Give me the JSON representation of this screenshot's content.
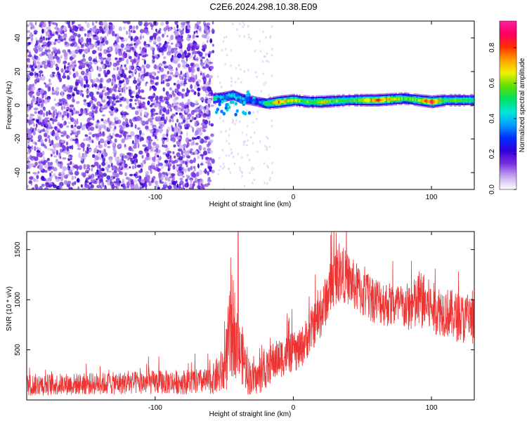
{
  "title": "C2E6.2024.298.10.38.E09",
  "chart_data": [
    {
      "type": "heatmap",
      "title": "C2E6.2024.298.10.38.E09",
      "xlabel": "Height of straight line (km)",
      "ylabel": "Frequency (Hz)",
      "xlim": [
        -193,
        131
      ],
      "ylim": [
        -50,
        50
      ],
      "x_ticks": [
        -100,
        0,
        100
      ],
      "x_tick_labels": [
        "-100",
        "0",
        "100"
      ],
      "y_ticks": [
        40,
        20,
        0,
        -20,
        -40
      ],
      "y_tick_labels": [
        "40",
        "20",
        "0",
        "-20",
        "-40"
      ],
      "colorbar": {
        "label": "Normalized spectral amplitude",
        "range": [
          0.0,
          0.95
        ],
        "ticks": [
          0.0,
          0.2,
          0.4,
          0.6,
          0.8
        ],
        "tick_labels": [
          "0.0",
          "0.2",
          "0.4",
          "0.6",
          "0.8"
        ],
        "colormap": [
          "#ffffff",
          "#c4a8ef",
          "#7a2fe0",
          "#3000d8",
          "#0030ff",
          "#00a0ff",
          "#00e8d8",
          "#00e060",
          "#60e000",
          "#f0f000",
          "#ffa000",
          "#ff3000",
          "#ff0060",
          "#ff20a0"
        ]
      },
      "noise_region_x": [
        -193,
        -58
      ],
      "signal_track": {
        "x": [
          -58,
          -50,
          -44,
          -38,
          -32,
          -26,
          -20,
          -10,
          0,
          10,
          20,
          40,
          60,
          80,
          90,
          100,
          110,
          120,
          131
        ],
        "freq": [
          4,
          5,
          6,
          4,
          3,
          2,
          1,
          2,
          3,
          2,
          2,
          3,
          3,
          4,
          3,
          2,
          3,
          3,
          3
        ],
        "amplitude": [
          0.5,
          0.35,
          0.45,
          0.4,
          0.3,
          0.3,
          0.5,
          0.75,
          0.6,
          0.55,
          0.65,
          0.5,
          0.75,
          0.55,
          0.6,
          0.85,
          0.5,
          0.55,
          0.5
        ]
      }
    },
    {
      "type": "line",
      "xlabel": "Height of straight line (km)",
      "ylabel": "SNR (10 * v/v)",
      "xlim": [
        -193,
        131
      ],
      "ylim": [
        0,
        1680
      ],
      "x_ticks": [
        -100,
        0,
        100
      ],
      "x_tick_labels": [
        "-100",
        "0",
        "100"
      ],
      "y_ticks": [
        500,
        1000,
        1500
      ],
      "y_tick_labels": [
        "500",
        "1000",
        "1500"
      ],
      "series": [
        {
          "name": "SNR",
          "color": "#ee3333",
          "envelope_x": [
            -193,
            -150,
            -100,
            -60,
            -50,
            -45,
            -43,
            -40,
            -37,
            -33,
            -28,
            -22,
            -15,
            -5,
            5,
            15,
            20,
            25,
            30,
            35,
            40,
            50,
            60,
            70,
            80,
            88,
            92,
            100,
            110,
            120,
            131
          ],
          "envelope_mid": [
            150,
            160,
            175,
            185,
            300,
            700,
            750,
            480,
            450,
            250,
            200,
            250,
            380,
            450,
            500,
            750,
            850,
            1050,
            1230,
            1260,
            1200,
            1060,
            1000,
            950,
            920,
            940,
            1000,
            920,
            880,
            820,
            780
          ],
          "envelope_spread": [
            110,
            110,
            120,
            130,
            250,
            550,
            500,
            300,
            300,
            200,
            160,
            170,
            200,
            200,
            200,
            230,
            240,
            260,
            280,
            280,
            260,
            250,
            240,
            230,
            230,
            280,
            300,
            260,
            250,
            250,
            260
          ],
          "peak": {
            "x": -40,
            "y": 1680
          }
        }
      ]
    }
  ]
}
